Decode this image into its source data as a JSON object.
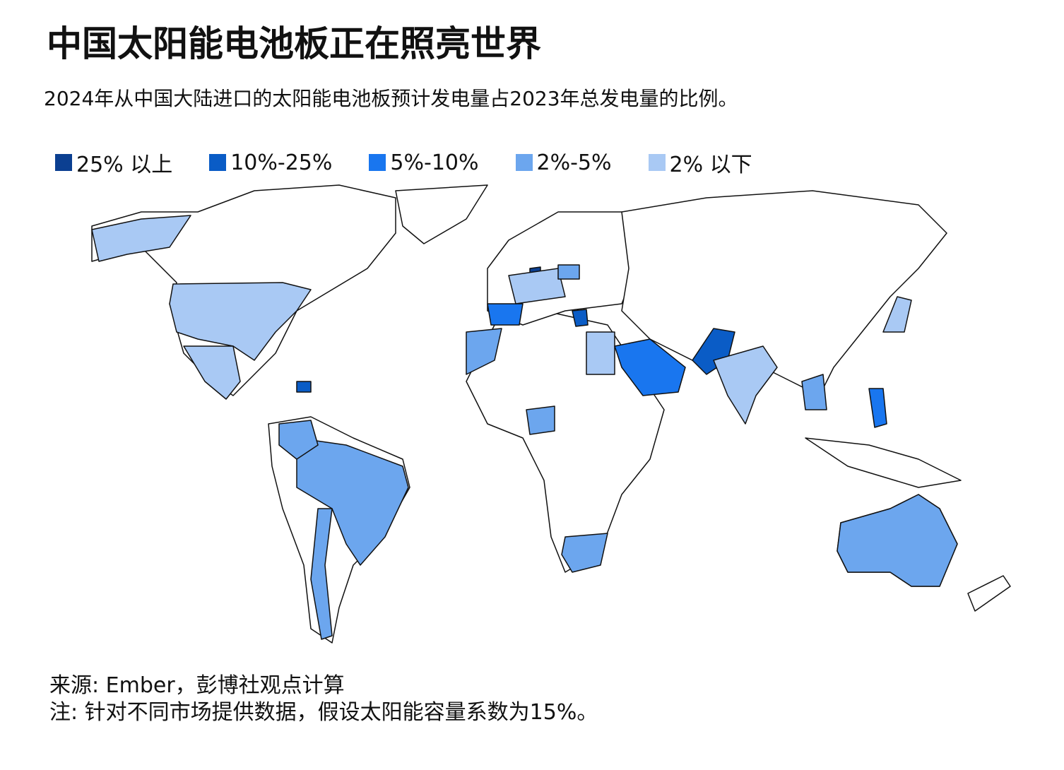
{
  "header": {
    "title": "中国太阳能电池板正在照亮世界",
    "subtitle": "2024年从中国大陆进口的太阳能电池板预计发电量占2023年总发电量的比例。"
  },
  "legend": {
    "items": [
      {
        "label": "25% 以上",
        "color": "#0b3f91"
      },
      {
        "label": "10%-25%",
        "color": "#0a5cc6"
      },
      {
        "label": "5%-10%",
        "color": "#1976ef"
      },
      {
        "label": "2%-5%",
        "color": "#6ca6ee"
      },
      {
        "label": "2% 以下",
        "color": "#a9c9f4"
      }
    ]
  },
  "footer": {
    "source": "来源: Ember，彭博社观点计算",
    "note": "注: 针对不同市场提供数据，假设太阳能容量系数为15%。"
  }
}
